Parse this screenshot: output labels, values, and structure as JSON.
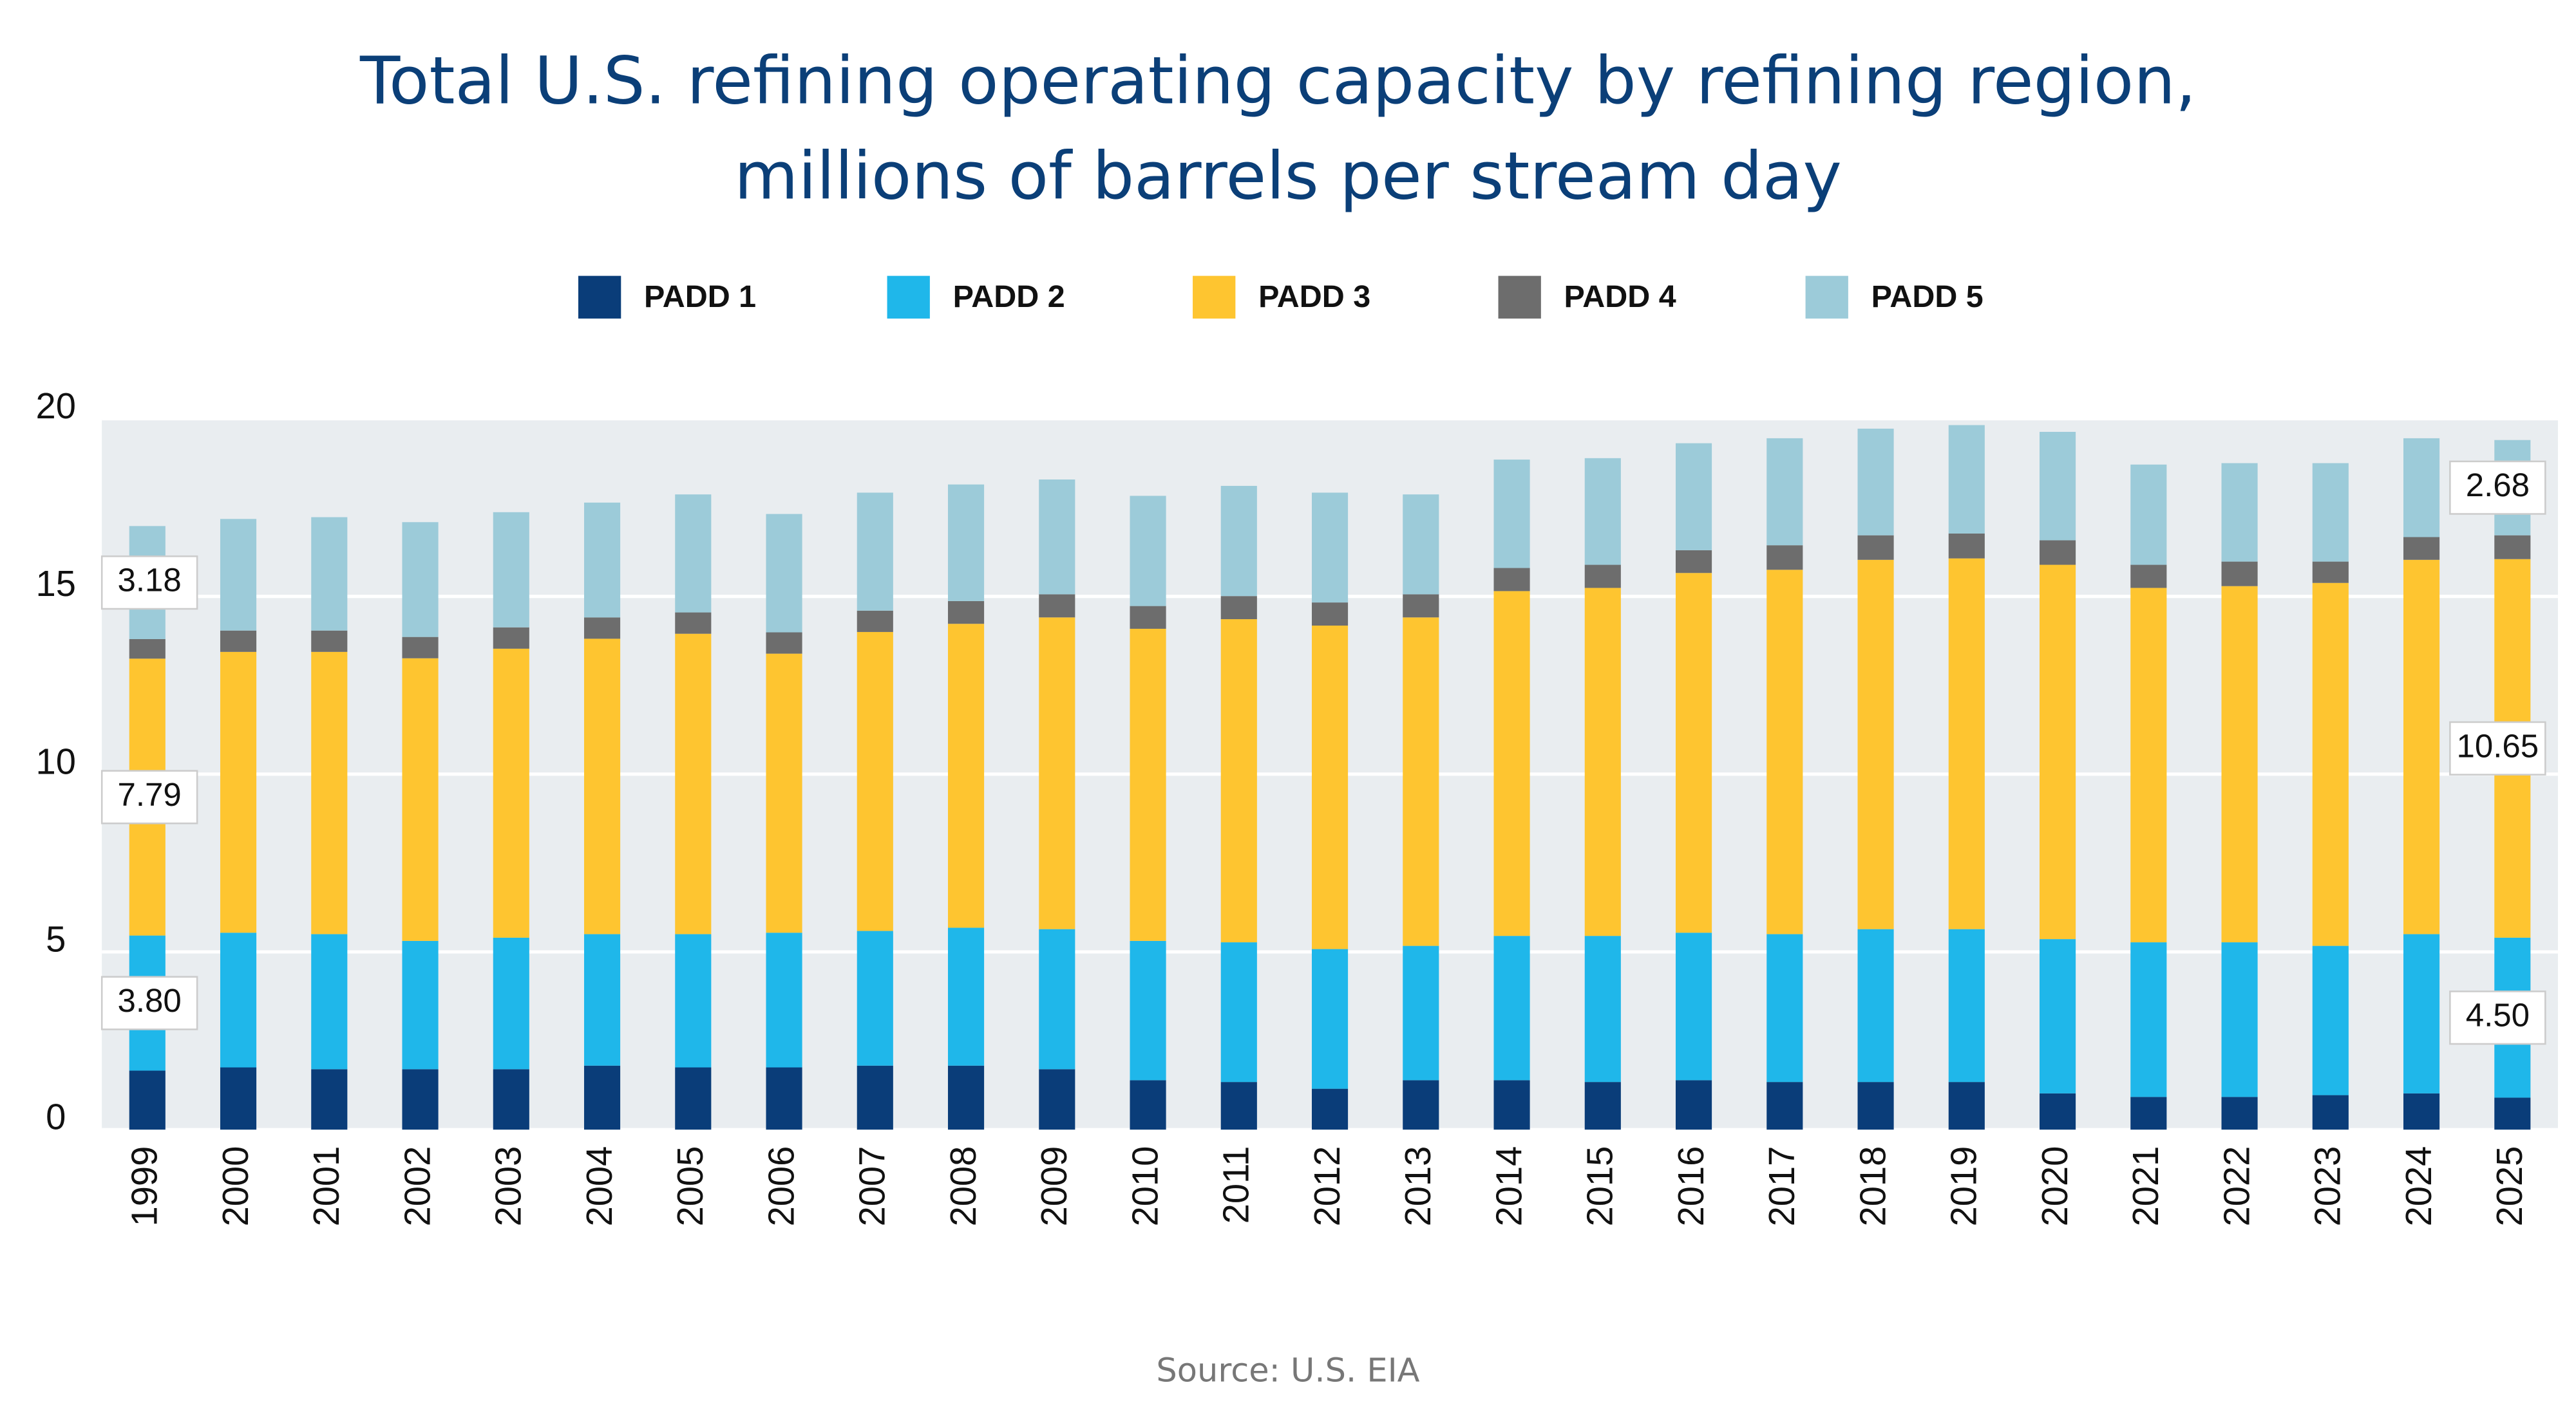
{
  "chart_data": {
    "type": "stacked-bar",
    "title": [
      "Total U.S. refining operating capacity by refining region,",
      "millions of barrels per stream day"
    ],
    "source": "Source: U.S. EIA",
    "categories": [
      "1999",
      "2000",
      "2001",
      "2002",
      "2003",
      "2004",
      "2005",
      "2006",
      "2007",
      "2008",
      "2009",
      "2010",
      "2011",
      "2012",
      "2013",
      "2014",
      "2015",
      "2016",
      "2017",
      "2018",
      "2019",
      "2020",
      "2021",
      "2022",
      "2023",
      "2024",
      "2025"
    ],
    "series": [
      {
        "name": "PADD 1",
        "color": "#0a3d79",
        "values": [
          1.66,
          1.75,
          1.7,
          1.7,
          1.7,
          1.8,
          1.75,
          1.75,
          1.8,
          1.8,
          1.7,
          1.39,
          1.34,
          1.15,
          1.39,
          1.39,
          1.34,
          1.39,
          1.34,
          1.34,
          1.34,
          1.02,
          0.92,
          0.92,
          0.97,
          1.02,
          0.9
        ]
      },
      {
        "name": "PADD 2",
        "color": "#1fb7ea",
        "values": [
          3.8,
          3.79,
          3.8,
          3.61,
          3.7,
          3.7,
          3.75,
          3.79,
          3.79,
          3.88,
          3.94,
          3.92,
          3.93,
          3.93,
          3.78,
          4.06,
          4.11,
          4.15,
          4.16,
          4.3,
          4.3,
          4.34,
          4.35,
          4.35,
          4.2,
          4.48,
          4.5
        ],
        "value_labels": [
          "3.80",
          null,
          null,
          null,
          null,
          null,
          null,
          null,
          null,
          null,
          null,
          null,
          null,
          null,
          null,
          null,
          null,
          null,
          null,
          null,
          null,
          null,
          null,
          null,
          null,
          null,
          "4.50"
        ]
      },
      {
        "name": "PADD 3",
        "color": "#fec530",
        "values": [
          7.79,
          7.9,
          7.94,
          7.95,
          8.13,
          8.31,
          8.45,
          7.85,
          8.41,
          8.55,
          8.77,
          8.78,
          9.09,
          9.1,
          9.24,
          9.7,
          9.79,
          10.12,
          10.25,
          10.39,
          10.43,
          10.53,
          9.97,
          10.02,
          10.21,
          10.53,
          10.65
        ],
        "value_labels": [
          "7.79",
          null,
          null,
          null,
          null,
          null,
          null,
          null,
          null,
          null,
          null,
          null,
          null,
          null,
          null,
          null,
          null,
          null,
          null,
          null,
          null,
          null,
          null,
          null,
          null,
          null,
          "10.65"
        ]
      },
      {
        "name": "PADD 4",
        "color": "#6d6d6d",
        "values": [
          0.55,
          0.6,
          0.6,
          0.6,
          0.6,
          0.6,
          0.6,
          0.6,
          0.6,
          0.64,
          0.65,
          0.64,
          0.65,
          0.65,
          0.65,
          0.65,
          0.65,
          0.64,
          0.69,
          0.69,
          0.7,
          0.69,
          0.65,
          0.69,
          0.6,
          0.64,
          0.67
        ]
      },
      {
        "name": "PADD 5",
        "color": "#9ccbd9",
        "values": [
          3.18,
          3.14,
          3.19,
          3.23,
          3.24,
          3.23,
          3.32,
          3.33,
          3.32,
          3.28,
          3.23,
          3.1,
          3.1,
          3.09,
          2.81,
          3.05,
          3.0,
          3.01,
          3.01,
          3.0,
          3.05,
          3.05,
          2.82,
          2.77,
          2.77,
          2.78,
          2.68
        ],
        "value_labels": [
          "3.18",
          null,
          null,
          null,
          null,
          null,
          null,
          null,
          null,
          null,
          null,
          null,
          null,
          null,
          null,
          null,
          null,
          null,
          null,
          null,
          null,
          null,
          null,
          null,
          null,
          null,
          "2.68"
        ]
      }
    ],
    "ylim": [
      0,
      20
    ],
    "yticks": [
      0,
      5,
      10,
      15,
      20
    ],
    "grid": true,
    "legend": "top"
  }
}
